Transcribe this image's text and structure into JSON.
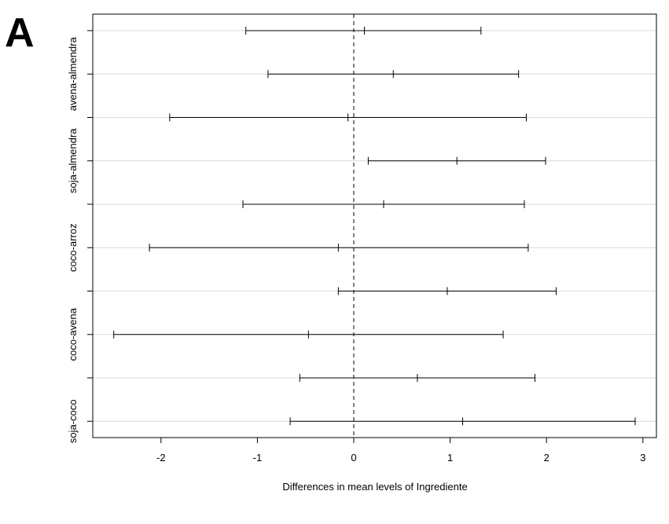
{
  "panel_label": "A",
  "chart_data": {
    "type": "errorbar",
    "orientation": "horizontal",
    "title": "",
    "xlabel": "Differences in mean levels of Ingrediente",
    "ylabel": "",
    "xlim": [
      -2.7,
      3.1
    ],
    "x_ticks": [
      -2,
      -1,
      0,
      1,
      2,
      3
    ],
    "reference_line": {
      "x": 0,
      "style": "dashed"
    },
    "grid": "horizontal",
    "rows": [
      {
        "label": "",
        "estimate": 0.11,
        "lower": -1.12,
        "upper": 1.32
      },
      {
        "label": "avena-almendra",
        "estimate": 0.41,
        "lower": -0.89,
        "upper": 1.71
      },
      {
        "label": "",
        "estimate": -0.06,
        "lower": -1.91,
        "upper": 1.79
      },
      {
        "label": "soja-almendra",
        "estimate": 1.07,
        "lower": 0.15,
        "upper": 1.99
      },
      {
        "label": "",
        "estimate": 0.31,
        "lower": -1.15,
        "upper": 1.77
      },
      {
        "label": "coco-arroz",
        "estimate": -0.16,
        "lower": -2.12,
        "upper": 1.81
      },
      {
        "label": "",
        "estimate": 0.97,
        "lower": -0.16,
        "upper": 2.1
      },
      {
        "label": "coco-avena",
        "estimate": -0.47,
        "lower": -2.49,
        "upper": 1.55
      },
      {
        "label": "",
        "estimate": 0.66,
        "lower": -0.56,
        "upper": 1.88
      },
      {
        "label": "soja-coco",
        "estimate": 1.13,
        "lower": -0.66,
        "upper": 2.92
      }
    ]
  }
}
